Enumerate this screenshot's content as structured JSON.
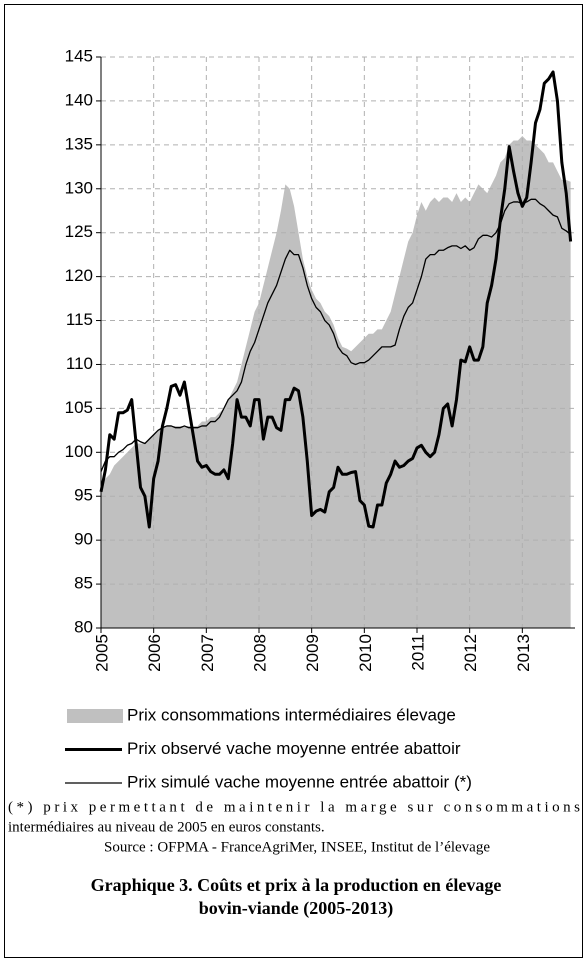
{
  "chart_data": {
    "type": "line",
    "categories": [
      "2005",
      null,
      null,
      null,
      null,
      null,
      null,
      null,
      null,
      null,
      null,
      null,
      "2006",
      null,
      null,
      null,
      null,
      null,
      null,
      null,
      null,
      null,
      null,
      null,
      "2007",
      null,
      null,
      null,
      null,
      null,
      null,
      null,
      null,
      null,
      null,
      null,
      "2008",
      null,
      null,
      null,
      null,
      null,
      null,
      null,
      null,
      null,
      null,
      null,
      "2009",
      null,
      null,
      null,
      null,
      null,
      null,
      null,
      null,
      null,
      null,
      null,
      "2010",
      null,
      null,
      null,
      null,
      null,
      null,
      null,
      null,
      null,
      null,
      null,
      "2011",
      null,
      null,
      null,
      null,
      null,
      null,
      null,
      null,
      null,
      null,
      null,
      "2012",
      null,
      null,
      null,
      null,
      null,
      null,
      null,
      null,
      null,
      null,
      null,
      "2013",
      null,
      null,
      null,
      null,
      null,
      null,
      null,
      null,
      null,
      null,
      null
    ],
    "ylim": [
      80,
      145
    ],
    "yticks": [
      80,
      85,
      90,
      95,
      100,
      105,
      110,
      115,
      120,
      125,
      130,
      135,
      140,
      145
    ],
    "grid": true,
    "series": [
      {
        "name": "Prix consommations intermédiaires élevage",
        "kind": "area",
        "color": "#c0c0c0",
        "values": [
          96.5,
          97,
          97.5,
          98.5,
          99,
          99.5,
          100,
          100.5,
          101,
          101,
          101,
          101.5,
          102,
          102.5,
          103,
          103,
          103,
          103,
          103,
          103,
          103,
          103,
          103,
          103.5,
          103.5,
          104,
          104,
          104.5,
          105,
          106,
          107,
          108,
          110,
          112,
          114,
          116,
          117,
          119,
          121,
          123,
          125,
          127.5,
          130.5,
          130,
          128,
          125,
          122,
          120,
          118.5,
          117.5,
          117,
          116,
          115.5,
          114.5,
          113,
          112,
          111.8,
          111.5,
          112,
          112.5,
          113,
          113.5,
          113.5,
          114,
          114,
          115,
          116,
          118,
          120,
          122,
          124,
          125,
          127,
          128.5,
          127.5,
          128.5,
          129,
          128.5,
          129,
          129,
          128.5,
          129.5,
          128.5,
          129,
          128.5,
          129.5,
          130.5,
          130,
          129.5,
          130.5,
          131.5,
          133,
          133.5,
          135,
          135.5,
          135.5,
          136,
          135.5,
          135.5,
          135,
          134.5,
          134,
          133,
          133,
          132,
          131,
          131,
          130.8
        ]
      },
      {
        "name": "Prix observé vache moyenne entrée abattoir",
        "kind": "line",
        "color": "#000000",
        "line_width": 3,
        "values": [
          95.5,
          98,
          102,
          101.5,
          104.5,
          104.5,
          104.8,
          106,
          101,
          96,
          95,
          91.5,
          97,
          99,
          103,
          105,
          107.5,
          107.7,
          106.5,
          108,
          105,
          102,
          99,
          98.3,
          98.5,
          97.8,
          97.5,
          97.5,
          98,
          97,
          101,
          106,
          104,
          104,
          103,
          106,
          106,
          101.5,
          104,
          104,
          102.8,
          102.5,
          106,
          106,
          107.3,
          107,
          104,
          99,
          92.8,
          93.3,
          93.5,
          93.2,
          95.5,
          96,
          98.3,
          97.5,
          97.5,
          97.7,
          97.8,
          94.5,
          94,
          91.6,
          91.5,
          94,
          94,
          96.5,
          97.5,
          99,
          98.3,
          98.5,
          99,
          99.3,
          100.5,
          100.8,
          100,
          99.5,
          100,
          102,
          105,
          105.5,
          103,
          106,
          110.5,
          110.3,
          112,
          110.5,
          110.5,
          112,
          117,
          119,
          122,
          126.5,
          130,
          134.8,
          132,
          129.5,
          128,
          129,
          133,
          137.5,
          139,
          142,
          142.5,
          143.3,
          140,
          133,
          129.5,
          124
        ]
      },
      {
        "name": "Prix simulé vache moyenne entrée abattoir (*)",
        "kind": "line",
        "color": "#000000",
        "line_width": 1.3,
        "values": [
          97.8,
          99,
          99.5,
          99.5,
          100,
          100.3,
          100.8,
          101,
          101.5,
          101.2,
          101,
          101.5,
          102,
          102.5,
          102.8,
          103,
          103,
          102.8,
          102.8,
          103,
          102.8,
          102.8,
          102.8,
          103,
          103,
          103.5,
          103.5,
          104,
          105,
          106,
          106.5,
          107,
          108,
          110,
          111.5,
          112.5,
          114,
          115.5,
          117,
          118,
          119,
          120.5,
          122,
          123,
          122.5,
          122.5,
          121,
          119,
          117.5,
          116.5,
          116,
          115,
          114.5,
          113.5,
          112,
          111.3,
          111,
          110.2,
          110,
          110.2,
          110.2,
          110.5,
          111,
          111.5,
          112,
          112,
          112,
          112.2,
          114,
          115.5,
          116.5,
          117,
          118.5,
          120,
          122,
          122.5,
          122.5,
          123,
          123,
          123.3,
          123.5,
          123.5,
          123.2,
          123.5,
          123,
          123.3,
          124.3,
          124.7,
          124.7,
          124.5,
          125,
          126,
          127.5,
          128.3,
          128.5,
          128.5,
          128.3,
          128.5,
          128.8,
          128.8,
          128.3,
          128,
          127.5,
          127,
          126.8,
          125.5,
          125.2,
          124.8
        ]
      }
    ],
    "notes": [
      "(*) prix permettant de maintenir la marge sur consommations",
      "intermédiaires au niveau de 2005 en euros constants."
    ],
    "source": "Source : OFPMA - FranceAgriMer, INSEE, Institut de l’élevage",
    "caption": [
      "Graphique 3. Coûts et prix à la production en élevage",
      "bovin-viande (2005-2013)"
    ]
  }
}
